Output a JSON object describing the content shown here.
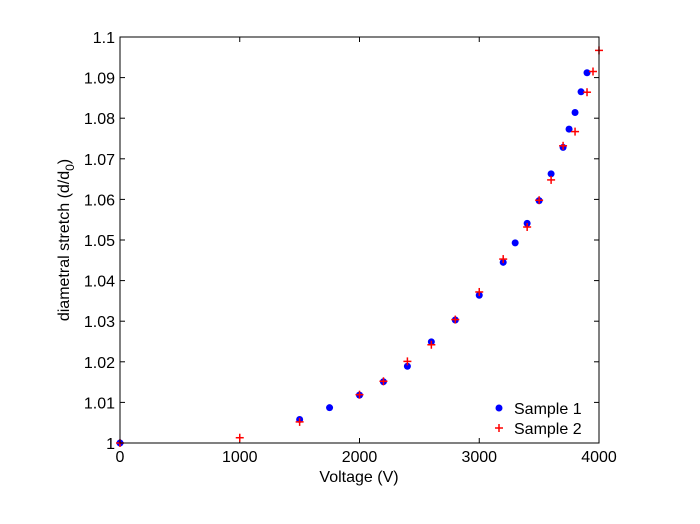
{
  "chart_data": {
    "type": "scatter",
    "title": "",
    "xlabel": "Voltage (V)",
    "ylabel": "diametral stretch (d/d",
    "ylabel_sub": "0",
    "ylabel_end": ")",
    "xlim": [
      0,
      4000
    ],
    "ylim": [
      1,
      1.1
    ],
    "xticks": [
      0,
      1000,
      2000,
      3000,
      4000
    ],
    "xtick_labels": [
      "0",
      "1000",
      "2000",
      "3000",
      "4000"
    ],
    "yticks": [
      1,
      1.01,
      1.02,
      1.03,
      1.04,
      1.05,
      1.06,
      1.07,
      1.08,
      1.09,
      1.1
    ],
    "ytick_labels": [
      "1",
      "1.01",
      "1.02",
      "1.03",
      "1.04",
      "1.05",
      "1.06",
      "1.07",
      "1.08",
      "1.09",
      "1.1"
    ],
    "grid": false,
    "legend_position": "bottom-right",
    "series": [
      {
        "name": "Sample 1",
        "marker": "dot",
        "color": "#0000ff",
        "x": [
          0,
          1500,
          1750,
          2000,
          2200,
          2400,
          2600,
          2800,
          3000,
          3200,
          3300,
          3400,
          3500,
          3600,
          3700,
          3750,
          3800,
          3850,
          3900
        ],
        "y": [
          1.0,
          1.0058,
          1.0087,
          1.0118,
          1.0151,
          1.0189,
          1.0249,
          1.0303,
          1.0364,
          1.0445,
          1.0493,
          1.0541,
          1.0597,
          1.0663,
          1.0728,
          1.0773,
          1.0814,
          1.0865,
          1.0912
        ]
      },
      {
        "name": "Sample 2",
        "marker": "plus",
        "color": "#ff0000",
        "x": [
          0,
          1000,
          1500,
          2000,
          2200,
          2400,
          2600,
          2800,
          3000,
          3200,
          3400,
          3500,
          3600,
          3700,
          3800,
          3900,
          3950,
          4000
        ],
        "y": [
          1.0,
          1.0013,
          1.0052,
          1.0119,
          1.0152,
          1.0201,
          1.0242,
          1.0304,
          1.0372,
          1.0453,
          1.0532,
          1.0598,
          1.0648,
          1.0732,
          1.0767,
          1.0864,
          1.0915,
          1.0967
        ]
      }
    ]
  }
}
